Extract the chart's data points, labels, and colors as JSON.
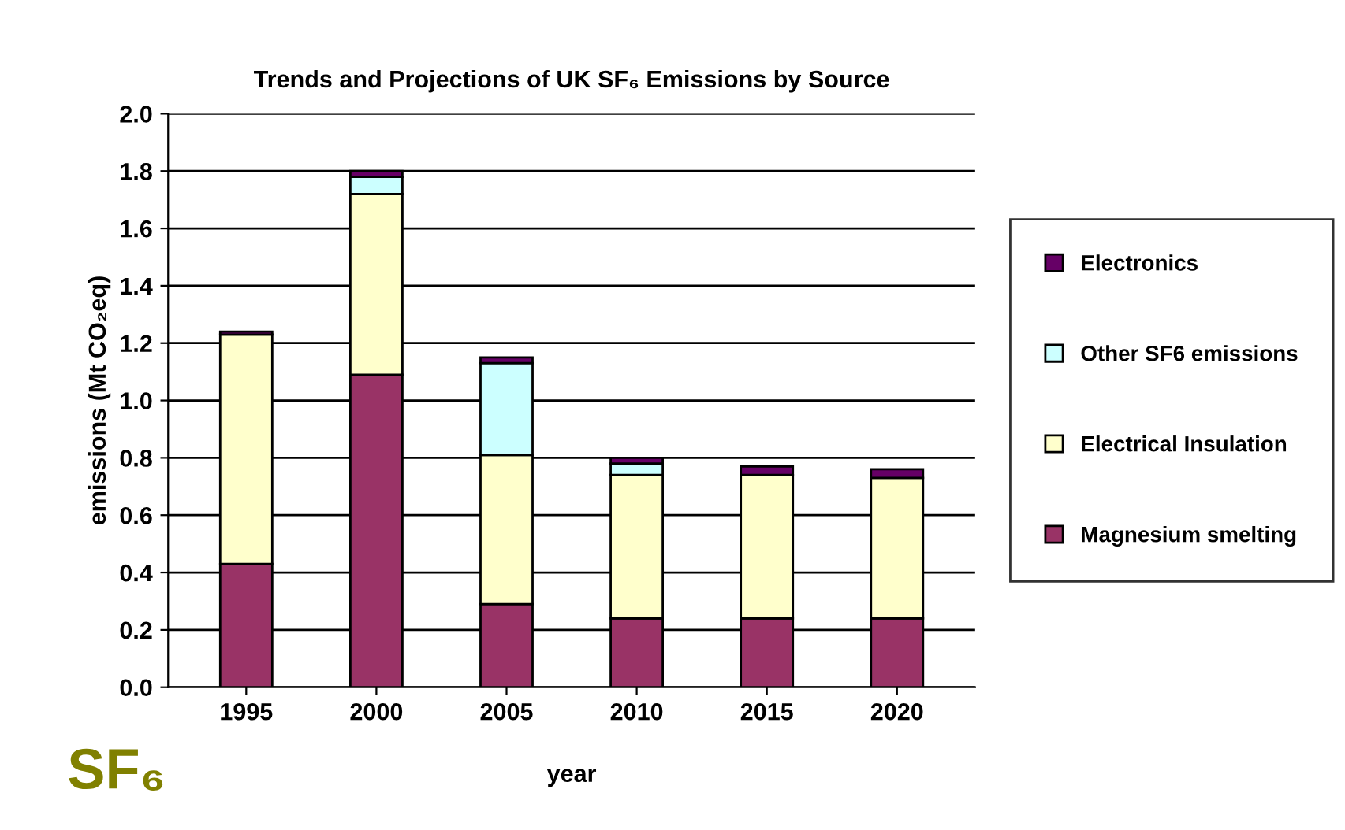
{
  "chart_data": {
    "type": "bar",
    "stacked": true,
    "title": "Trends and Projections of UK SF₆ Emissions by Source",
    "xlabel": "year",
    "ylabel": "emissions (Mt CO₂eq)",
    "categories": [
      "1995",
      "2000",
      "2005",
      "2010",
      "2015",
      "2020"
    ],
    "series": [
      {
        "name": "Magnesium smelting",
        "color": "#993366",
        "values": [
          0.43,
          1.09,
          0.29,
          0.24,
          0.24,
          0.24
        ]
      },
      {
        "name": "Electrical Insulation",
        "color": "#ffffcc",
        "values": [
          0.8,
          0.63,
          0.52,
          0.5,
          0.5,
          0.49
        ]
      },
      {
        "name": "Other SF6 emissions",
        "color": "#ccffff",
        "values": [
          null,
          0.06,
          0.32,
          0.04,
          null,
          null
        ]
      },
      {
        "name": "Electronics",
        "color": "#660066",
        "values": [
          0.01,
          0.02,
          0.02,
          0.02,
          0.03,
          0.03
        ]
      }
    ],
    "ylim": [
      0,
      2.0
    ],
    "yticks": [
      {
        "value": 0,
        "label": "0.0"
      },
      {
        "value": 0.2,
        "label": "0.2"
      },
      {
        "value": 0.4,
        "label": "0.4"
      },
      {
        "value": 0.6,
        "label": "0.6"
      },
      {
        "value": 0.8,
        "label": "0.8"
      },
      {
        "value": 1.0,
        "label": "1.0"
      },
      {
        "value": 1.2,
        "label": "1.2"
      },
      {
        "value": 1.4,
        "label": "1.4"
      },
      {
        "value": 1.6,
        "label": "1.6"
      },
      {
        "value": 1.8,
        "label": "1.8"
      },
      {
        "value": 2.0,
        "label": "2.0"
      }
    ],
    "grid": "y",
    "legend": "right",
    "annotations": [
      "SF₆"
    ]
  }
}
